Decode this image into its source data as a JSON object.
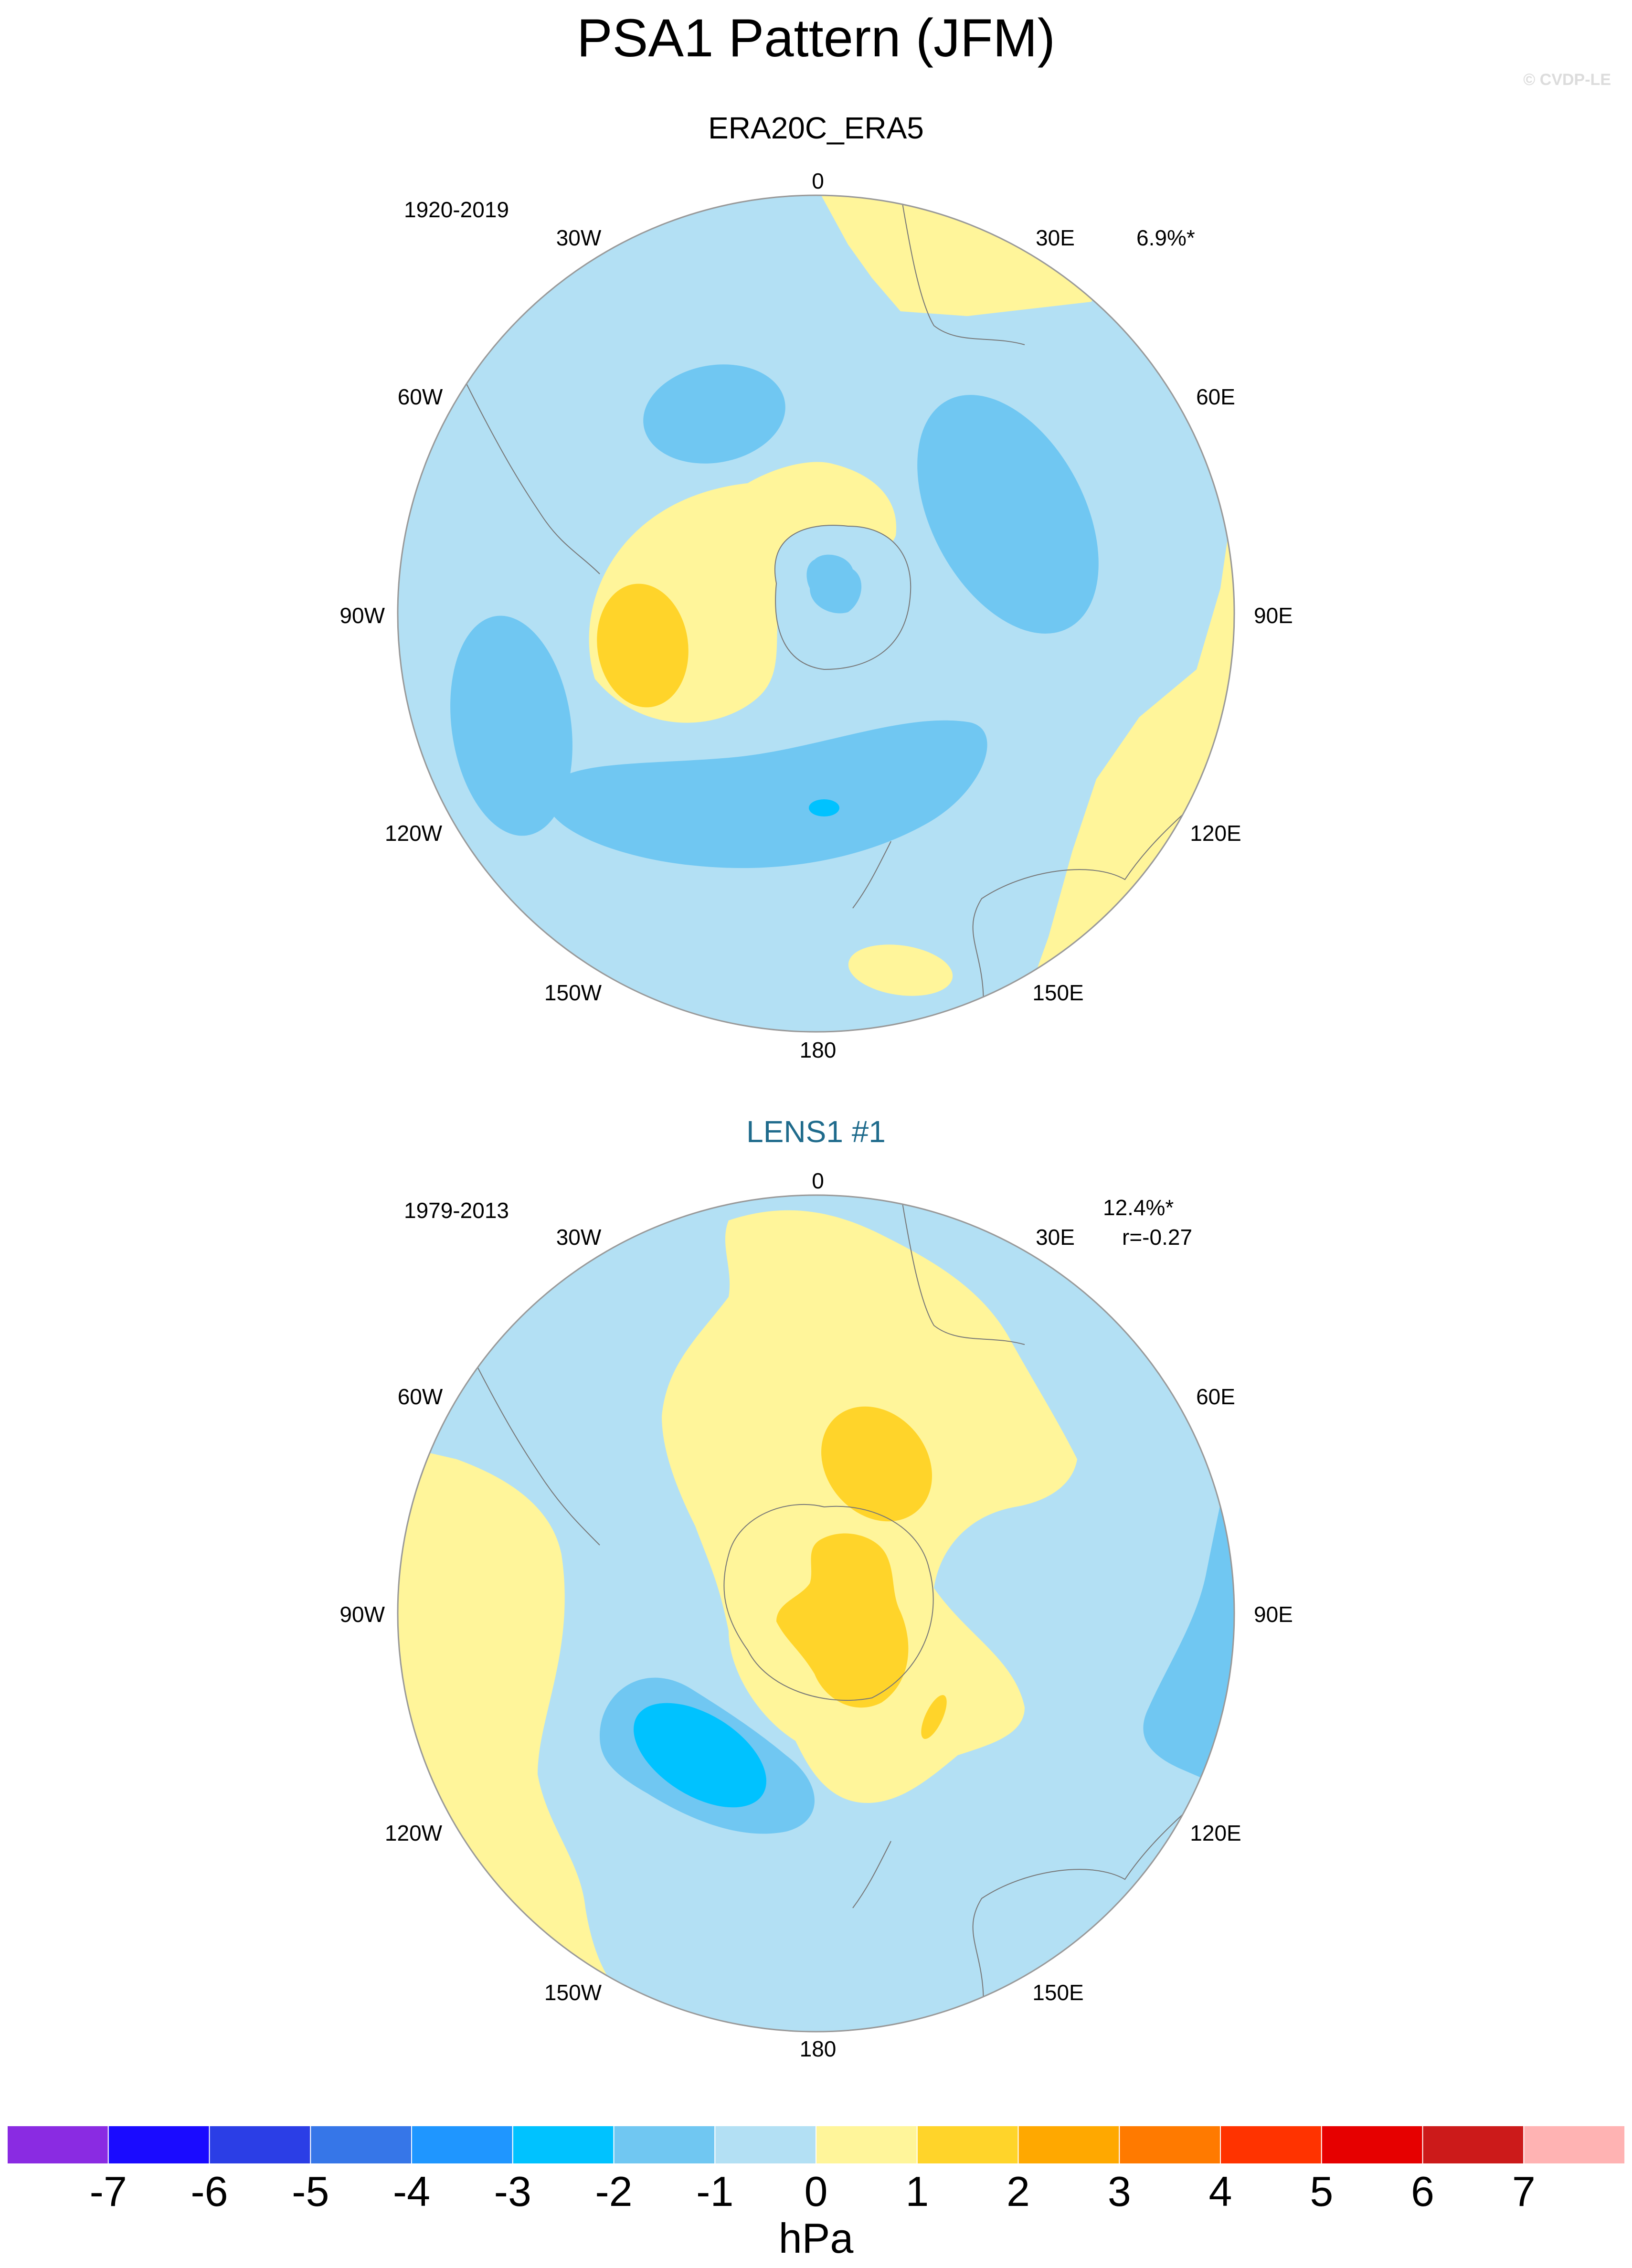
{
  "main_title": "PSA1 Pattern (JFM)",
  "credit": "© CVDP-LE",
  "panels": [
    {
      "title": "ERA20C_ERA5",
      "period": "1920-2019",
      "stat1": "6.9%*",
      "stat2": ""
    },
    {
      "title": "LENS1 #1",
      "period": "1979-2013",
      "stat1": "12.4%*",
      "stat2": "r=-0.27"
    }
  ],
  "longitude_labels": {
    "lon_0": "0",
    "lon_30e": "30E",
    "lon_60e": "60E",
    "lon_90e": "90E",
    "lon_120e": "120E",
    "lon_150e": "150E",
    "lon_180": "180",
    "lon_150w": "150W",
    "lon_120w": "120W",
    "lon_90w": "90W",
    "lon_60w": "60W",
    "lon_30w": "30W"
  },
  "colorbar": {
    "unit": "hPa",
    "colors": [
      "#8a2be2",
      "#1a0bff",
      "#2b3ee6",
      "#3676e8",
      "#1f96ff",
      "#00c2ff",
      "#70c7f2",
      "#b3e0f4",
      "#fff59a",
      "#ffd42a",
      "#ffa800",
      "#ff7a00",
      "#ff3300",
      "#e60000",
      "#cc1a1a",
      "#ffb3b3"
    ],
    "ticks": [
      "-7",
      "-6",
      "-5",
      "-4",
      "-3",
      "-2",
      "-1",
      "0",
      "1",
      "2",
      "3",
      "4",
      "5",
      "6",
      "7"
    ]
  },
  "palette": {
    "lev_m1": "#b3e0f4",
    "lev_m2": "#70c7f2",
    "lev_m3": "#00c2ff",
    "lev_p1": "#fff59a",
    "lev_p2": "#ffd42a",
    "coast": "#777777",
    "rim": "#999999"
  }
}
